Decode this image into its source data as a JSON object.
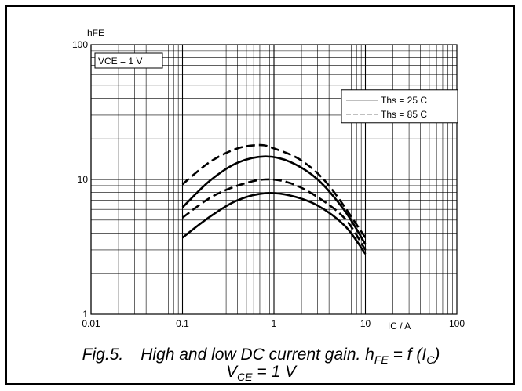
{
  "chart_data": {
    "type": "line",
    "xscale": "log",
    "yscale": "log",
    "xlim": [
      0.01,
      100
    ],
    "ylim": [
      1,
      100
    ],
    "grid": true,
    "xlabel": "IC / A",
    "ylabel": "hFE",
    "x_ticks": [
      "0.01",
      "0.1",
      "1",
      "10",
      "100"
    ],
    "y_ticks": [
      "1",
      "10",
      "100"
    ],
    "annotation": "VCE = 1 V",
    "legend": {
      "position": "top-right",
      "entries": [
        {
          "label": "Ths = 25 C",
          "style": "solid"
        },
        {
          "label": "Ths = 85 C",
          "style": "dashed"
        }
      ]
    },
    "series": [
      {
        "style": "solid",
        "x": [
          0.1,
          0.2,
          0.4,
          0.8,
          1.5,
          3,
          6,
          10
        ],
        "y": [
          6.2,
          9.8,
          13.3,
          14.8,
          13.5,
          10.0,
          5.8,
          3.3
        ]
      },
      {
        "style": "solid",
        "x": [
          0.1,
          0.2,
          0.4,
          0.8,
          1.5,
          3,
          6,
          10
        ],
        "y": [
          3.7,
          5.3,
          7.0,
          7.9,
          7.6,
          6.4,
          4.5,
          2.8
        ]
      },
      {
        "style": "dashed",
        "x": [
          0.1,
          0.2,
          0.4,
          0.7,
          1.0,
          2,
          4,
          10
        ],
        "y": [
          9.2,
          13.5,
          17.0,
          18.0,
          17.0,
          13.8,
          9.0,
          3.7
        ]
      },
      {
        "style": "dashed",
        "x": [
          0.1,
          0.2,
          0.4,
          0.8,
          1.5,
          3,
          6,
          10
        ],
        "y": [
          5.2,
          7.3,
          9.0,
          10.0,
          9.4,
          7.4,
          5.1,
          3.0
        ]
      }
    ]
  },
  "caption": {
    "fig": "Fig.5.",
    "text_pre": "High and low DC current gain. h",
    "text_sub1": "FE",
    "text_mid": " = f (I",
    "text_sub2": "C",
    "text_post": ")",
    "line2_v": "V",
    "line2_sub": "CE",
    "line2_rest": " = 1 V"
  },
  "colors": {
    "line": "#000000",
    "background": "#ffffff"
  }
}
